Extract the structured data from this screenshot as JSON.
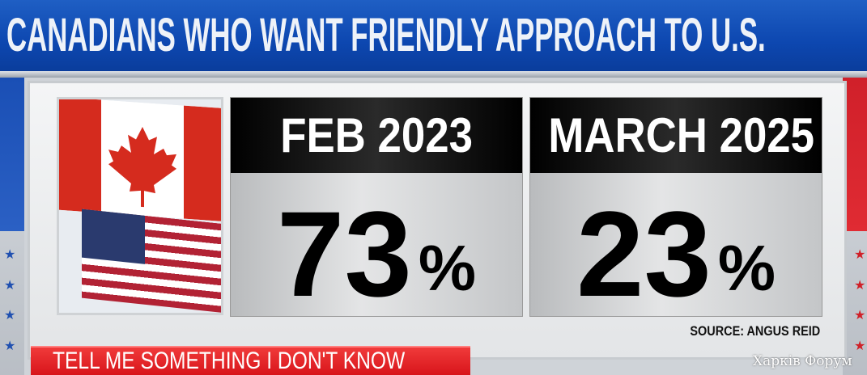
{
  "header": {
    "title": "CANADIANS WHO WANT FRIENDLY APPROACH TO U.S."
  },
  "cards": [
    {
      "label": "FEB 2023",
      "value": "73",
      "unit": "%"
    },
    {
      "label": "MARCH 2025",
      "value": "23",
      "unit": "%"
    }
  ],
  "source": "SOURCE: ANGUS REID",
  "lower_third": "TELL ME SOMETHING I DON'T KNOW",
  "watermark": "Харків Форум",
  "image": {
    "description_icons": [
      "canada-flag",
      "us-flag"
    ]
  },
  "colors": {
    "header_blue": "#0d47b0",
    "lower_third_red": "#e0191f",
    "card_header": "#000000"
  }
}
